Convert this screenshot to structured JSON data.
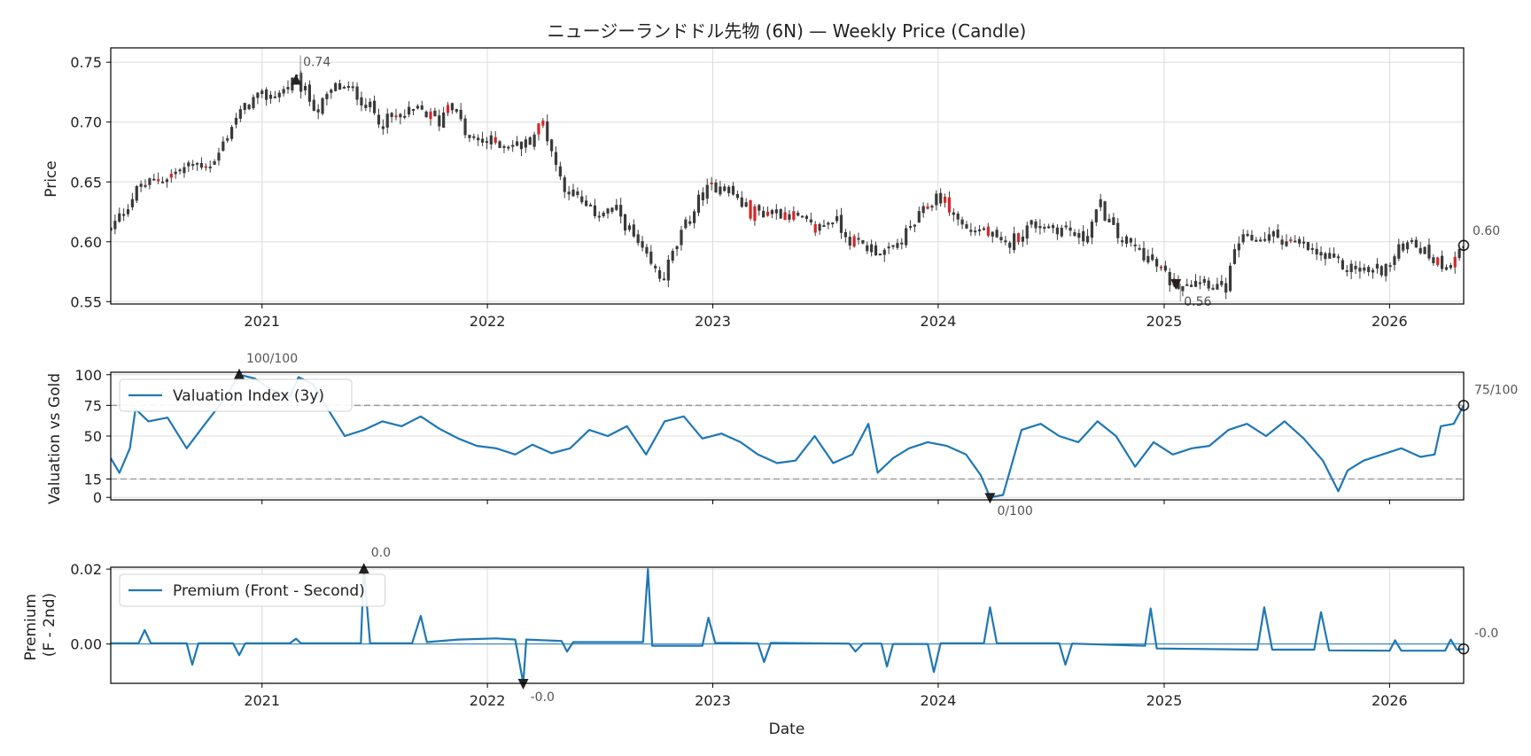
{
  "figure_title": "ニュージーランドドル先物 (6N) — Weekly Price (Candle)",
  "x_axis_label": "Date",
  "colors": {
    "candle_up": "#3a3a3a",
    "candle_down": "#d62728",
    "line": "#1f77b4",
    "threshold": "#999999",
    "marker": "#222222"
  },
  "chart_data": [
    {
      "type": "candlestick",
      "title": "ニュージーランドドル先物 (6N) — Weekly Price (Candle)",
      "ylabel": "Price",
      "xlim": [
        "2020-05-01",
        "2026-05-01"
      ],
      "ylim": [
        0.548,
        0.762
      ],
      "x_ticks": [
        "2021",
        "2022",
        "2023",
        "2024",
        "2025",
        "2026"
      ],
      "y_ticks": [
        "0.55",
        "0.60",
        "0.65",
        "0.70",
        "0.75"
      ],
      "grid": true,
      "close_path": [
        [
          "2020-05-01",
          0.61
        ],
        [
          "2020-06-15",
          0.645
        ],
        [
          "2020-08-01",
          0.655
        ],
        [
          "2020-09-15",
          0.665
        ],
        [
          "2020-10-15",
          0.665
        ],
        [
          "2020-11-15",
          0.7
        ],
        [
          "2020-12-15",
          0.718
        ],
        [
          "2021-02-01",
          0.725
        ],
        [
          "2021-02-25",
          0.735
        ],
        [
          "2021-04-01",
          0.71
        ],
        [
          "2021-05-01",
          0.73
        ],
        [
          "2021-06-01",
          0.725
        ],
        [
          "2021-07-15",
          0.7
        ],
        [
          "2021-09-15",
          0.71
        ],
        [
          "2021-10-15",
          0.7
        ],
        [
          "2021-11-01",
          0.72
        ],
        [
          "2021-12-01",
          0.685
        ],
        [
          "2022-01-15",
          0.683
        ],
        [
          "2022-03-01",
          0.68
        ],
        [
          "2022-04-01",
          0.7
        ],
        [
          "2022-05-01",
          0.65
        ],
        [
          "2022-06-15",
          0.625
        ],
        [
          "2022-08-01",
          0.625
        ],
        [
          "2022-09-15",
          0.585
        ],
        [
          "2022-10-10",
          0.568
        ],
        [
          "2022-11-15",
          0.61
        ],
        [
          "2022-12-15",
          0.64
        ],
        [
          "2023-01-15",
          0.65
        ],
        [
          "2023-03-01",
          0.625
        ],
        [
          "2023-05-01",
          0.625
        ],
        [
          "2023-06-15",
          0.61
        ],
        [
          "2023-07-15",
          0.62
        ],
        [
          "2023-08-15",
          0.6
        ],
        [
          "2023-10-15",
          0.59
        ],
        [
          "2023-12-01",
          0.62
        ],
        [
          "2024-01-01",
          0.64
        ],
        [
          "2024-02-15",
          0.61
        ],
        [
          "2024-03-15",
          0.61
        ],
        [
          "2024-04-15",
          0.595
        ],
        [
          "2024-06-01",
          0.615
        ],
        [
          "2024-08-01",
          0.61
        ],
        [
          "2024-08-20",
          0.6
        ],
        [
          "2024-09-20",
          0.63
        ],
        [
          "2024-10-15",
          0.605
        ],
        [
          "2024-11-30",
          0.59
        ],
        [
          "2025-01-15",
          0.565
        ],
        [
          "2025-03-01",
          0.57
        ],
        [
          "2025-04-10",
          0.56
        ],
        [
          "2025-05-01",
          0.6
        ],
        [
          "2025-07-01",
          0.605
        ],
        [
          "2025-08-15",
          0.595
        ],
        [
          "2025-10-15",
          0.58
        ],
        [
          "2025-12-01",
          0.575
        ],
        [
          "2026-01-01",
          0.58
        ],
        [
          "2026-02-01",
          0.605
        ],
        [
          "2026-03-01",
          0.59
        ],
        [
          "2026-04-01",
          0.58
        ],
        [
          "2026-05-01",
          0.597
        ]
      ],
      "annotations": [
        {
          "label": "0.74",
          "date": "2021-02-25",
          "value": 0.735,
          "marker": "up"
        },
        {
          "label": "0.56",
          "date": "2025-01-20",
          "value": 0.565,
          "marker": "down"
        },
        {
          "label": "0.60",
          "date": "2026-05-01",
          "value": 0.597,
          "marker": "circle"
        }
      ]
    },
    {
      "type": "line",
      "ylabel": "Valuation vs Gold",
      "xlim": [
        "2020-05-01",
        "2026-05-01"
      ],
      "ylim": [
        -2,
        102
      ],
      "y_ticks": [
        "0",
        "15",
        "50",
        "75",
        "100"
      ],
      "thresholds": [
        75,
        15
      ],
      "legend": {
        "label": "Valuation Index (3y)",
        "location": "upper-left"
      },
      "series": [
        {
          "name": "Valuation Index (3y)",
          "points": [
            [
              "2020-05-01",
              32
            ],
            [
              "2020-05-15",
              20
            ],
            [
              "2020-06-01",
              40
            ],
            [
              "2020-06-10",
              72
            ],
            [
              "2020-07-01",
              62
            ],
            [
              "2020-08-01",
              65
            ],
            [
              "2020-09-01",
              40
            ],
            [
              "2020-10-01",
              60
            ],
            [
              "2020-11-01",
              80
            ],
            [
              "2020-11-25",
              100
            ],
            [
              "2020-12-20",
              97
            ],
            [
              "2021-01-15",
              88
            ],
            [
              "2021-02-15",
              82
            ],
            [
              "2021-03-01",
              98
            ],
            [
              "2021-03-25",
              92
            ],
            [
              "2021-04-20",
              70
            ],
            [
              "2021-05-15",
              50
            ],
            [
              "2021-06-15",
              55
            ],
            [
              "2021-07-15",
              62
            ],
            [
              "2021-08-15",
              58
            ],
            [
              "2021-09-15",
              66
            ],
            [
              "2021-10-15",
              56
            ],
            [
              "2021-11-15",
              48
            ],
            [
              "2021-12-15",
              42
            ],
            [
              "2022-01-15",
              40
            ],
            [
              "2022-02-15",
              35
            ],
            [
              "2022-03-15",
              43
            ],
            [
              "2022-04-15",
              36
            ],
            [
              "2022-05-15",
              40
            ],
            [
              "2022-06-15",
              55
            ],
            [
              "2022-07-15",
              50
            ],
            [
              "2022-08-15",
              58
            ],
            [
              "2022-09-15",
              35
            ],
            [
              "2022-10-15",
              62
            ],
            [
              "2022-11-15",
              66
            ],
            [
              "2022-12-15",
              48
            ],
            [
              "2023-01-15",
              52
            ],
            [
              "2023-02-15",
              45
            ],
            [
              "2023-03-15",
              35
            ],
            [
              "2023-04-15",
              28
            ],
            [
              "2023-05-15",
              30
            ],
            [
              "2023-06-15",
              50
            ],
            [
              "2023-07-15",
              28
            ],
            [
              "2023-08-15",
              35
            ],
            [
              "2023-09-10",
              60
            ],
            [
              "2023-09-25",
              20
            ],
            [
              "2023-10-20",
              32
            ],
            [
              "2023-11-15",
              40
            ],
            [
              "2023-12-15",
              45
            ],
            [
              "2024-01-15",
              42
            ],
            [
              "2024-02-15",
              35
            ],
            [
              "2024-03-10",
              18
            ],
            [
              "2024-03-25",
              0
            ],
            [
              "2024-04-15",
              2
            ],
            [
              "2024-05-15",
              55
            ],
            [
              "2024-06-15",
              60
            ],
            [
              "2024-07-15",
              50
            ],
            [
              "2024-08-15",
              45
            ],
            [
              "2024-09-15",
              62
            ],
            [
              "2024-10-15",
              50
            ],
            [
              "2024-11-15",
              25
            ],
            [
              "2024-12-15",
              45
            ],
            [
              "2025-01-15",
              35
            ],
            [
              "2025-02-15",
              40
            ],
            [
              "2025-03-15",
              42
            ],
            [
              "2025-04-15",
              55
            ],
            [
              "2025-05-15",
              60
            ],
            [
              "2025-06-15",
              50
            ],
            [
              "2025-07-15",
              62
            ],
            [
              "2025-08-15",
              48
            ],
            [
              "2025-09-15",
              30
            ],
            [
              "2025-10-10",
              5
            ],
            [
              "2025-10-25",
              22
            ],
            [
              "2025-11-20",
              30
            ],
            [
              "2025-12-20",
              35
            ],
            [
              "2026-01-20",
              40
            ],
            [
              "2026-02-20",
              33
            ],
            [
              "2026-03-15",
              35
            ],
            [
              "2026-03-25",
              58
            ],
            [
              "2026-04-15",
              60
            ],
            [
              "2026-05-01",
              75
            ]
          ]
        }
      ],
      "annotations": [
        {
          "label": "100/100",
          "date": "2020-11-25",
          "value": 100,
          "marker": "up"
        },
        {
          "label": "0/100",
          "date": "2024-03-25",
          "value": 0,
          "marker": "down"
        },
        {
          "label": "75/100",
          "date": "2026-05-01",
          "value": 75,
          "marker": "circle"
        }
      ]
    },
    {
      "type": "line",
      "ylabel": "Premium\n(F - 2nd)",
      "xlim": [
        "2020-05-01",
        "2026-05-01"
      ],
      "ylim": [
        -0.0105,
        0.0205
      ],
      "y_ticks": [
        "0.00",
        "0.02"
      ],
      "x_ticks": [
        "2021",
        "2022",
        "2023",
        "2024",
        "2025",
        "2026"
      ],
      "xlabel": "Date",
      "baseline": 0,
      "legend": {
        "label": "Premium (Front - Second)",
        "location": "upper-left"
      },
      "series": [
        {
          "name": "Premium (Front - Second)",
          "points": [
            [
              "2020-05-01",
              0.0002
            ],
            [
              "2020-06-15",
              0.0002
            ],
            [
              "2020-06-25",
              0.0037
            ],
            [
              "2020-07-05",
              0.0002
            ],
            [
              "2020-09-01",
              0.0002
            ],
            [
              "2020-09-10",
              -0.0055
            ],
            [
              "2020-09-20",
              0.0002
            ],
            [
              "2020-11-15",
              0.0002
            ],
            [
              "2020-11-25",
              -0.003
            ],
            [
              "2020-12-05",
              0.0002
            ],
            [
              "2021-02-15",
              0.0002
            ],
            [
              "2021-02-25",
              0.0014
            ],
            [
              "2021-03-05",
              0.0002
            ],
            [
              "2021-06-10",
              0.0002
            ],
            [
              "2021-06-15",
              0.02
            ],
            [
              "2021-06-25",
              0.0002
            ],
            [
              "2021-09-01",
              0.0002
            ],
            [
              "2021-09-15",
              0.0075
            ],
            [
              "2021-09-25",
              0.0005
            ],
            [
              "2021-11-15",
              0.0012
            ],
            [
              "2022-01-15",
              0.0015
            ],
            [
              "2022-02-15",
              0.0012
            ],
            [
              "2022-02-28",
              -0.0105
            ],
            [
              "2022-03-05",
              0.0012
            ],
            [
              "2022-05-01",
              0.0008
            ],
            [
              "2022-05-10",
              -0.002
            ],
            [
              "2022-05-20",
              0.0005
            ],
            [
              "2022-09-10",
              0.0005
            ],
            [
              "2022-09-18",
              0.02
            ],
            [
              "2022-09-25",
              -0.0005
            ],
            [
              "2022-12-15",
              -0.0005
            ],
            [
              "2022-12-25",
              0.007
            ],
            [
              "2023-01-05",
              0.0003
            ],
            [
              "2023-03-15",
              0.0002
            ],
            [
              "2023-03-25",
              -0.0048
            ],
            [
              "2023-04-05",
              0.0003
            ],
            [
              "2023-08-10",
              0.0001
            ],
            [
              "2023-08-20",
              -0.002
            ],
            [
              "2023-09-01",
              0.0001
            ],
            [
              "2023-10-01",
              0.0001
            ],
            [
              "2023-10-10",
              -0.006
            ],
            [
              "2023-10-20",
              0.0
            ],
            [
              "2023-12-15",
              0.0
            ],
            [
              "2023-12-25",
              -0.0075
            ],
            [
              "2024-01-05",
              0.0002
            ],
            [
              "2024-03-15",
              0.0002
            ],
            [
              "2024-03-25",
              0.0098
            ],
            [
              "2024-04-05",
              0.0002
            ],
            [
              "2024-07-15",
              0.0002
            ],
            [
              "2024-07-25",
              -0.0055
            ],
            [
              "2024-08-05",
              0.0001
            ],
            [
              "2024-12-01",
              -0.0005
            ],
            [
              "2024-12-10",
              0.0095
            ],
            [
              "2024-12-20",
              -0.0012
            ],
            [
              "2025-06-01",
              -0.0015
            ],
            [
              "2025-06-12",
              0.0098
            ],
            [
              "2025-06-25",
              -0.0015
            ],
            [
              "2025-09-01",
              -0.0015
            ],
            [
              "2025-09-12",
              0.0085
            ],
            [
              "2025-09-25",
              -0.0017
            ],
            [
              "2026-01-01",
              -0.0018
            ],
            [
              "2026-01-10",
              0.001
            ],
            [
              "2026-01-20",
              -0.0018
            ],
            [
              "2026-04-01",
              -0.0018
            ],
            [
              "2026-04-10",
              0.0012
            ],
            [
              "2026-04-20",
              -0.0015
            ],
            [
              "2026-05-01",
              -0.0013
            ]
          ]
        }
      ],
      "annotations": [
        {
          "label": "0.0",
          "date": "2021-06-15",
          "value": 0.02,
          "marker": "up"
        },
        {
          "label": "-0.0",
          "date": "2022-02-28",
          "value": -0.0105,
          "marker": "down"
        },
        {
          "label": "-0.0",
          "date": "2026-05-01",
          "value": -0.0013,
          "marker": "circle"
        }
      ]
    }
  ]
}
